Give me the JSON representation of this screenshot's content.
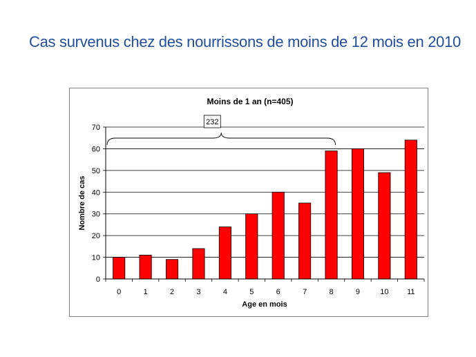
{
  "slide": {
    "title": "Cas survenus chez des nourrissons de moins de 12 mois en 2010"
  },
  "chart_data": {
    "type": "bar",
    "title": "Moins de 1 an  (n=405)",
    "xlabel": "Age en mois",
    "ylabel": "Nombre de cas",
    "categories": [
      "0",
      "1",
      "2",
      "3",
      "4",
      "5",
      "6",
      "7",
      "8",
      "9",
      "10",
      "11"
    ],
    "values": [
      10,
      11,
      9,
      14,
      24,
      30,
      40,
      35,
      59,
      60,
      49,
      64
    ],
    "ylim": [
      0,
      70
    ],
    "yticks": [
      0,
      10,
      20,
      30,
      40,
      50,
      60,
      70
    ],
    "grid": true,
    "bar_color": "#ff0000",
    "annotation": {
      "label": "232",
      "span_categories": [
        "0",
        "8"
      ]
    }
  }
}
